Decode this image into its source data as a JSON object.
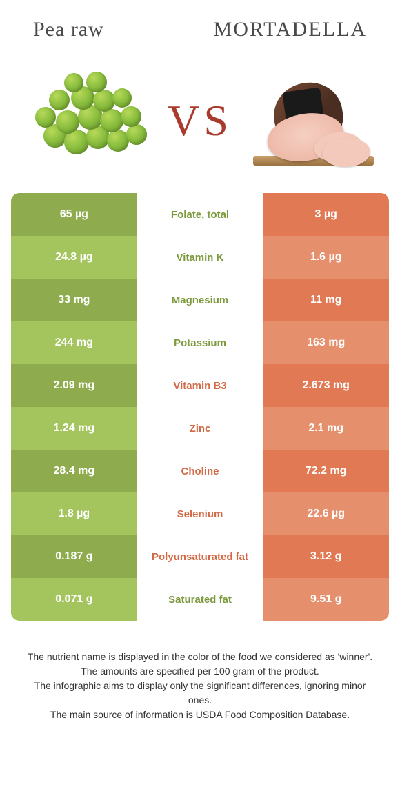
{
  "header": {
    "left": "Pea raw",
    "right": "Mortadella"
  },
  "vs_label": "VS",
  "colors": {
    "left_dark": "#8eac4d",
    "left_light": "#a4c45e",
    "right_dark": "#e17a54",
    "right_light": "#e68f6d",
    "winner_left_text": "#7c9a3d",
    "winner_right_text": "#d26a46"
  },
  "rows": [
    {
      "left": "65 µg",
      "label": "Folate, total",
      "right": "3 µg",
      "winner": "left"
    },
    {
      "left": "24.8 µg",
      "label": "Vitamin K",
      "right": "1.6 µg",
      "winner": "left"
    },
    {
      "left": "33 mg",
      "label": "Magnesium",
      "right": "11 mg",
      "winner": "left"
    },
    {
      "left": "244 mg",
      "label": "Potassium",
      "right": "163 mg",
      "winner": "left"
    },
    {
      "left": "2.09 mg",
      "label": "Vitamin B3",
      "right": "2.673 mg",
      "winner": "right"
    },
    {
      "left": "1.24 mg",
      "label": "Zinc",
      "right": "2.1 mg",
      "winner": "right"
    },
    {
      "left": "28.4 mg",
      "label": "Choline",
      "right": "72.2 mg",
      "winner": "right"
    },
    {
      "left": "1.8 µg",
      "label": "Selenium",
      "right": "22.6 µg",
      "winner": "right"
    },
    {
      "left": "0.187 g",
      "label": "Polyunsaturated fat",
      "right": "3.12 g",
      "winner": "right"
    },
    {
      "left": "0.071 g",
      "label": "Saturated fat",
      "right": "9.51 g",
      "winner": "left"
    }
  ],
  "footnotes": [
    "The nutrient name is displayed in the color of the food we considered as 'winner'.",
    "The amounts are specified per 100 gram of the product.",
    "The infographic aims to display only the significant differences, ignoring minor ones.",
    "The main source of information is USDA Food Composition Database."
  ]
}
